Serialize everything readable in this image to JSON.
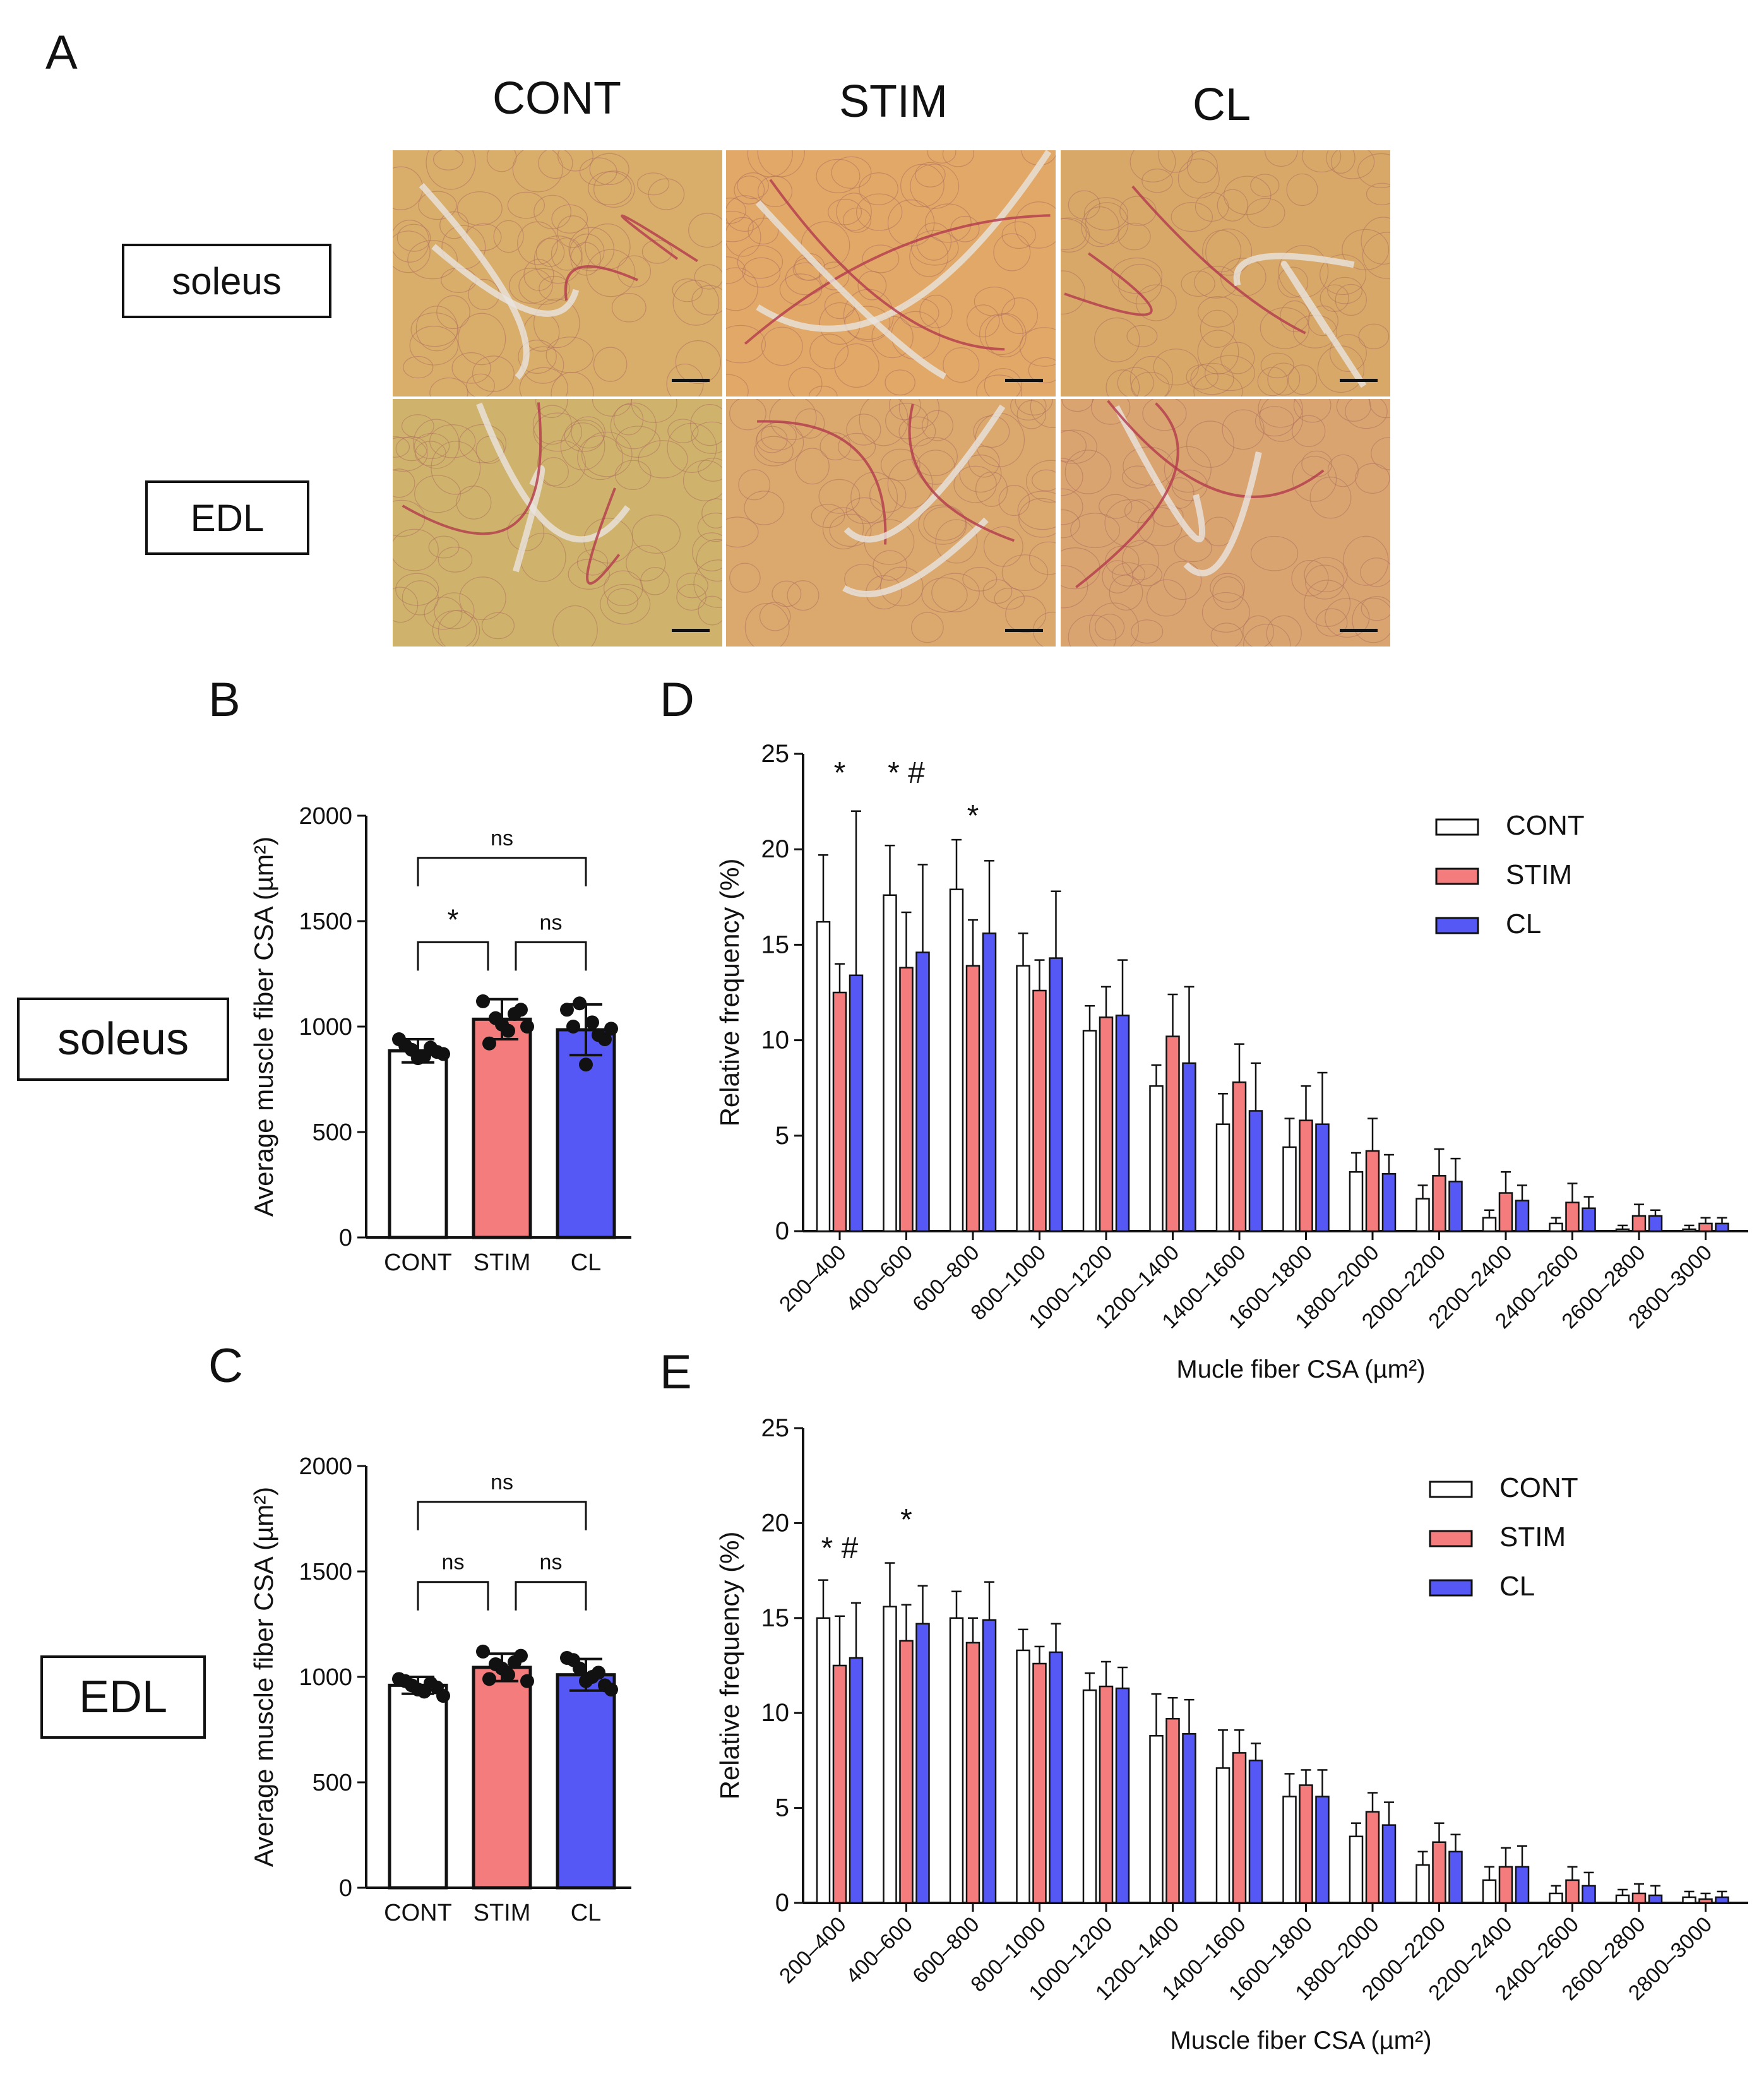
{
  "panels": {
    "a": "A",
    "b": "B",
    "c": "C",
    "d": "D",
    "e": "E"
  },
  "histology": {
    "columns": [
      "CONT",
      "STIM",
      "CL"
    ],
    "rows": [
      "soleus",
      "EDL"
    ]
  },
  "colors": {
    "cont": "#ffffff",
    "stim": "#f47c7c",
    "cl": "#5558f5",
    "text": "#111111"
  },
  "chart_data": [
    {
      "id": "B",
      "type": "bar",
      "row_label": "soleus",
      "categories": [
        "CONT",
        "STIM",
        "CL"
      ],
      "values": [
        885,
        1035,
        985
      ],
      "errors": [
        55,
        95,
        120
      ],
      "points": [
        [
          940,
          890,
          860,
          880,
          910,
          850,
          900,
          870
        ],
        [
          1120,
          1040,
          980,
          1080,
          920,
          1010,
          1060,
          1000
        ],
        [
          1080,
          1110,
          1020,
          940,
          1000,
          820,
          960,
          990
        ]
      ],
      "ylabel": "Average muscle fiber CSA (µm²)",
      "ylim": [
        0,
        2000
      ],
      "yticks": [
        0,
        500,
        1000,
        1500,
        2000
      ],
      "significance": [
        {
          "pair": [
            0,
            2
          ],
          "label": "ns",
          "y": 1800
        },
        {
          "pair": [
            0,
            1
          ],
          "label": "*",
          "y": 1400
        },
        {
          "pair": [
            1,
            2
          ],
          "label": "ns",
          "y": 1400
        }
      ]
    },
    {
      "id": "C",
      "type": "bar",
      "row_label": "EDL",
      "categories": [
        "CONT",
        "STIM",
        "CL"
      ],
      "values": [
        960,
        1045,
        1010
      ],
      "errors": [
        40,
        65,
        75
      ],
      "points": [
        [
          990,
          960,
          930,
          950,
          980,
          940,
          970,
          910
        ],
        [
          1120,
          1060,
          1010,
          1100,
          990,
          1040,
          1070,
          980
        ],
        [
          1090,
          1040,
          1000,
          960,
          1080,
          980,
          1020,
          940
        ]
      ],
      "ylabel": "Average muscle fiber CSA (µm²)",
      "ylim": [
        0,
        2000
      ],
      "yticks": [
        0,
        500,
        1000,
        1500,
        2000
      ],
      "significance": [
        {
          "pair": [
            0,
            2
          ],
          "label": "ns",
          "y": 1830
        },
        {
          "pair": [
            0,
            1
          ],
          "label": "ns",
          "y": 1450
        },
        {
          "pair": [
            1,
            2
          ],
          "label": "ns",
          "y": 1450
        }
      ]
    },
    {
      "id": "D",
      "type": "bar",
      "categories": [
        "200–400",
        "400–600",
        "600–800",
        "800–1000",
        "1000–1200",
        "1200–1400",
        "1400–1600",
        "1600–1800",
        "1800–2000",
        "2000–2200",
        "2200–2400",
        "2400–2600",
        "2600–2800",
        "2800–3000"
      ],
      "series": [
        {
          "name": "CONT",
          "values": [
            16.2,
            17.6,
            17.9,
            13.9,
            10.5,
            7.6,
            5.6,
            4.4,
            3.1,
            1.7,
            0.7,
            0.4,
            0.1,
            0.1
          ],
          "errors": [
            3.5,
            2.6,
            2.6,
            1.7,
            1.3,
            1.1,
            1.6,
            1.5,
            1.0,
            0.7,
            0.4,
            0.3,
            0.2,
            0.2
          ]
        },
        {
          "name": "STIM",
          "values": [
            12.5,
            13.8,
            13.9,
            12.6,
            11.2,
            10.2,
            7.8,
            5.8,
            4.2,
            2.9,
            2.0,
            1.5,
            0.8,
            0.4
          ],
          "errors": [
            1.5,
            2.9,
            2.4,
            1.6,
            1.6,
            2.2,
            2.0,
            1.8,
            1.7,
            1.4,
            1.1,
            1.0,
            0.6,
            0.3
          ]
        },
        {
          "name": "CL",
          "values": [
            13.4,
            14.6,
            15.6,
            14.3,
            11.3,
            8.8,
            6.3,
            5.6,
            3.0,
            2.6,
            1.6,
            1.2,
            0.8,
            0.4
          ],
          "errors": [
            8.6,
            4.6,
            3.8,
            3.5,
            2.9,
            4.0,
            2.5,
            2.7,
            1.0,
            1.2,
            0.8,
            0.6,
            0.3,
            0.3
          ]
        }
      ],
      "xlabel": "Mucle fiber CSA (µm²)",
      "ylabel": "Relative frequency  (%)",
      "ylim": [
        0,
        25
      ],
      "yticks": [
        0,
        5,
        10,
        15,
        20,
        25
      ],
      "legend": "top-right",
      "annotations": [
        {
          "category": 0,
          "text": "*"
        },
        {
          "category": 1,
          "text": "* #"
        },
        {
          "category": 2,
          "text": "*"
        }
      ]
    },
    {
      "id": "E",
      "type": "bar",
      "categories": [
        "200–400",
        "400–600",
        "600–800",
        "800–1000",
        "1000–1200",
        "1200–1400",
        "1400–1600",
        "1600–1800",
        "1800–2000",
        "2000–2200",
        "2200–2400",
        "2400–2600",
        "2600–2800",
        "2800–3000"
      ],
      "series": [
        {
          "name": "CONT",
          "values": [
            15.0,
            15.6,
            15.0,
            13.3,
            11.2,
            8.8,
            7.1,
            5.6,
            3.5,
            2.0,
            1.2,
            0.5,
            0.4,
            0.3
          ],
          "errors": [
            2.0,
            2.3,
            1.4,
            1.1,
            0.9,
            2.2,
            2.0,
            1.2,
            0.7,
            0.7,
            0.7,
            0.4,
            0.3,
            0.3
          ]
        },
        {
          "name": "STIM",
          "values": [
            12.5,
            13.8,
            13.7,
            12.6,
            11.4,
            9.7,
            7.9,
            6.2,
            4.8,
            3.2,
            1.9,
            1.2,
            0.5,
            0.2
          ],
          "errors": [
            2.6,
            1.9,
            1.3,
            0.9,
            1.3,
            1.1,
            1.2,
            0.8,
            1.0,
            1.0,
            1.0,
            0.7,
            0.5,
            0.3
          ]
        },
        {
          "name": "CL",
          "values": [
            12.9,
            14.7,
            14.9,
            13.2,
            11.3,
            8.9,
            7.5,
            5.6,
            4.1,
            2.7,
            1.9,
            0.9,
            0.4,
            0.3
          ],
          "errors": [
            2.9,
            2.0,
            2.0,
            1.5,
            1.1,
            1.8,
            0.9,
            1.4,
            1.2,
            0.9,
            1.1,
            0.7,
            0.5,
            0.3
          ]
        }
      ],
      "xlabel": "Muscle fiber CSA (µm²)",
      "ylabel": "Relative frequency  (%)",
      "ylim": [
        0,
        25
      ],
      "yticks": [
        0,
        5,
        10,
        15,
        20,
        25
      ],
      "legend": "top-right",
      "annotations": [
        {
          "category": 0,
          "text": "* #"
        },
        {
          "category": 1,
          "text": "*"
        }
      ]
    }
  ]
}
